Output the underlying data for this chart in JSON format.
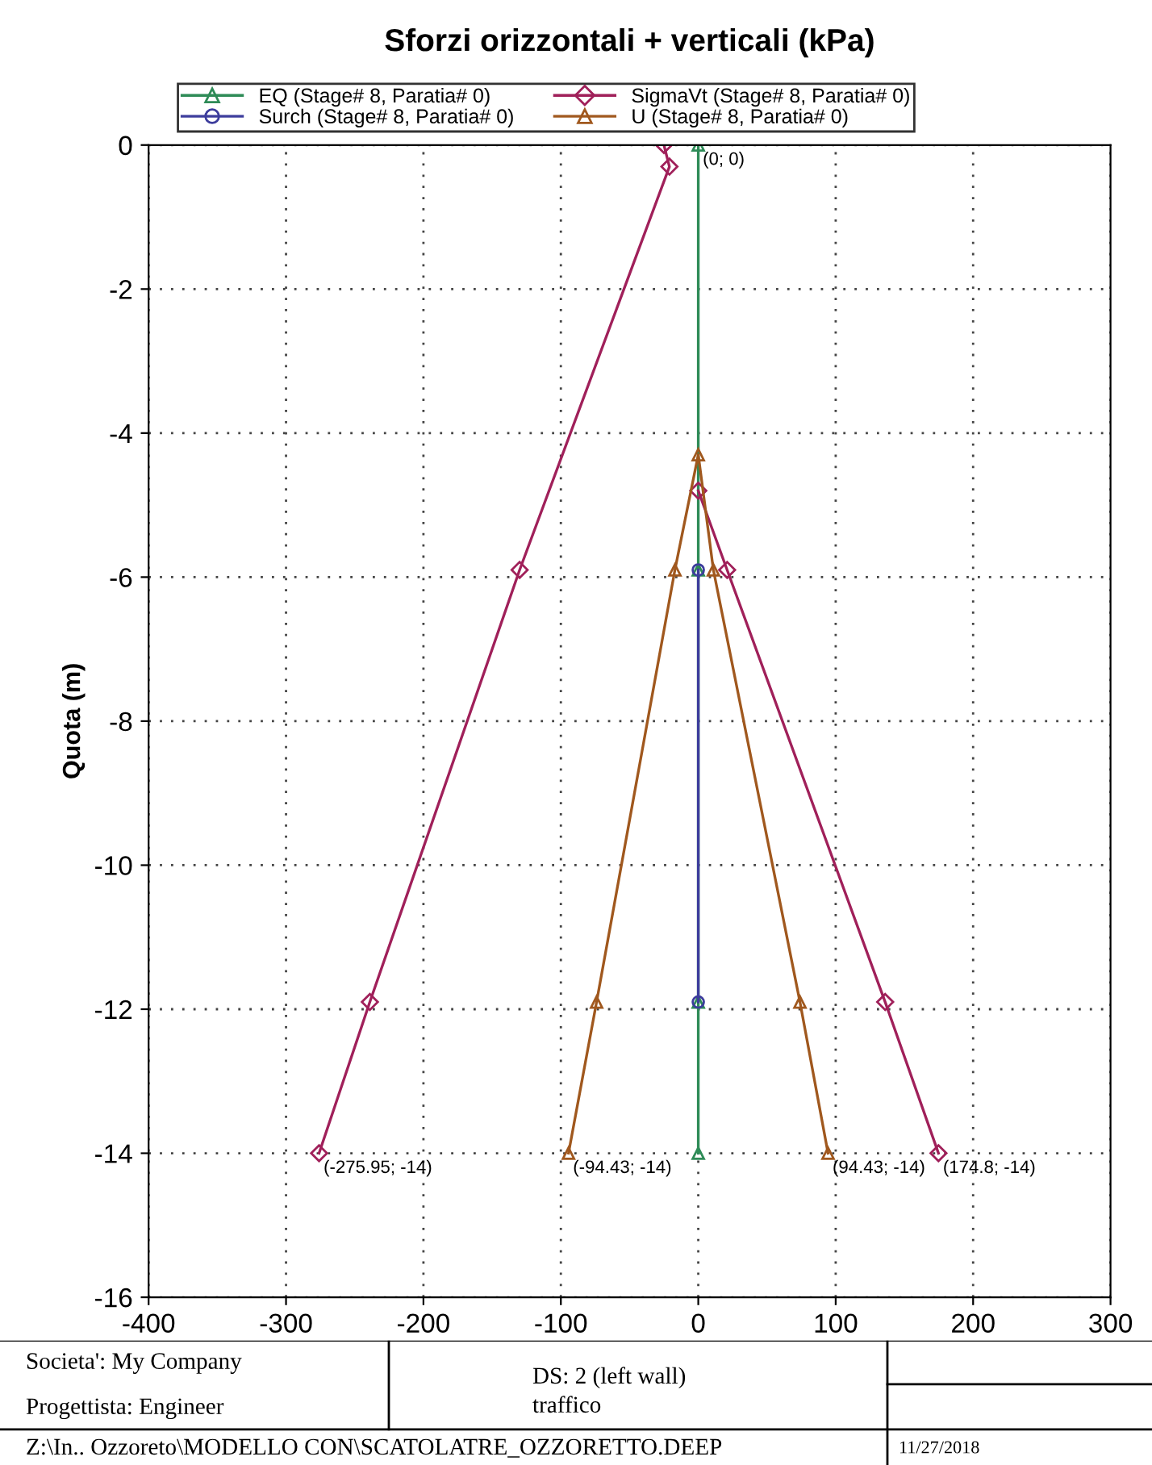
{
  "chart_data": {
    "type": "line",
    "title": "Sforzi orizzontali + verticali (kPa)",
    "ylabel": "Quota (m)",
    "series": [
      {
        "name": "EQ (Stage# 8, Paratia# 0)",
        "color": "#2e8b57",
        "marker": "triangle",
        "x": [
          0,
          0,
          0,
          0
        ],
        "values": [
          0,
          -5.9,
          -11.9,
          -14
        ]
      },
      {
        "name": "Surch (Stage# 8, Paratia# 0)",
        "color": "#3c3c9c",
        "marker": "circle",
        "x": [
          0,
          0
        ],
        "values": [
          -5.9,
          -11.9
        ]
      },
      {
        "name": "SigmaVt (Stage# 8, Paratia# 0)",
        "color": "#a0205a",
        "marker": "diamond",
        "x": [
          -25,
          -21,
          -130,
          -239,
          -275.95,
          null,
          0,
          21,
          136,
          174.8
        ],
        "values": [
          0,
          -0.3,
          -5.9,
          -11.9,
          -14,
          null,
          -4.8,
          -5.9,
          -11.9,
          -14
        ]
      },
      {
        "name": "U (Stage# 8, Paratia# 0)",
        "color": "#a0581e",
        "marker": "triangle",
        "x": [
          -94.43,
          -74,
          -17,
          0,
          11,
          74,
          94.43
        ],
        "values": [
          -14,
          -11.9,
          -5.9,
          -4.3,
          -5.9,
          -11.9,
          -14
        ]
      }
    ],
    "xlim": [
      -400,
      300
    ],
    "xticks": [
      -400,
      -300,
      -200,
      -100,
      0,
      100,
      200,
      300
    ],
    "ylim": [
      -16,
      0
    ],
    "yticks": [
      -16,
      -14,
      -12,
      -10,
      -8,
      -6,
      -4,
      -2,
      0
    ],
    "grid": true,
    "legend": "top",
    "line_style": "solid",
    "annotations": [
      {
        "text": "(0; 0)",
        "x": 0,
        "y": 0
      },
      {
        "text": "(-275.95; -14)",
        "x": -275.95,
        "y": -14
      },
      {
        "text": "(-94.43; -14)",
        "x": -94.43,
        "y": -14
      },
      {
        "text": "(94.43; -14)",
        "x": 94.43,
        "y": -14
      },
      {
        "text": "(174.8; -14)",
        "x": 174.8,
        "y": -14
      },
      "Societa': My Company",
      "Progettista: Engineer",
      "DS: 2 (left wall)",
      "traffico",
      "Z:\\In.. Ozzoreto\\MODELLO CON\\SCATOLATRE_OZZORETTO.DEEP",
      "11/27/2018"
    ]
  }
}
